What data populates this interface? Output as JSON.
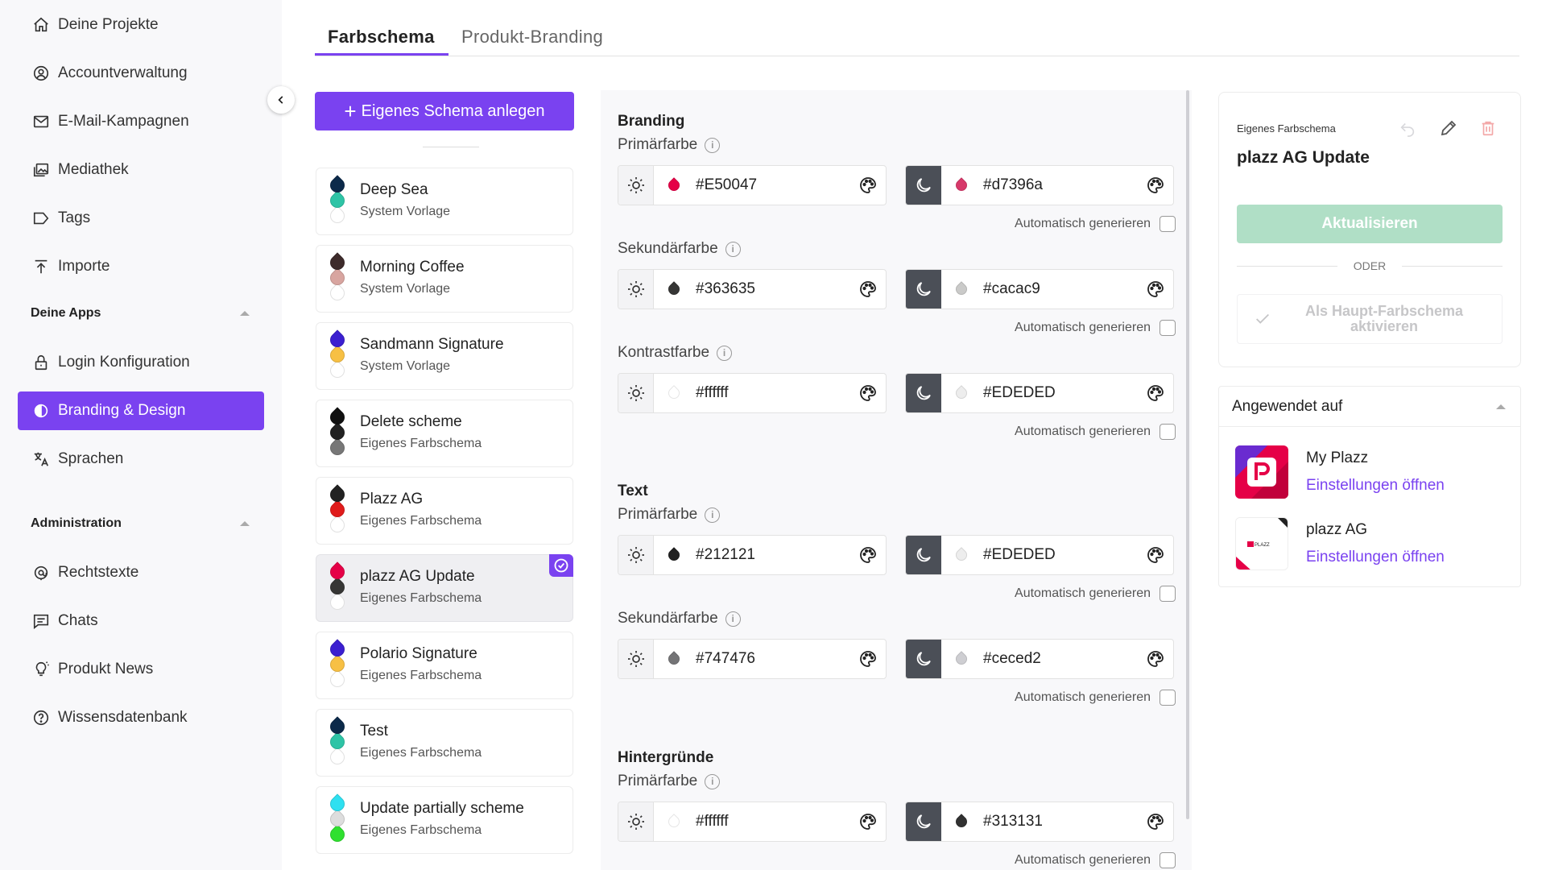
{
  "sidebar": {
    "items": [
      {
        "label": "Deine Projekte",
        "icon": "home-icon"
      },
      {
        "label": "Accountverwaltung",
        "icon": "account-icon"
      },
      {
        "label": "E-Mail-Kampagnen",
        "icon": "mail-icon"
      },
      {
        "label": "Mediathek",
        "icon": "media-icon"
      },
      {
        "label": "Tags",
        "icon": "tag-icon"
      },
      {
        "label": "Importe",
        "icon": "import-icon"
      }
    ],
    "section_apps": "Deine Apps",
    "apps_items": [
      {
        "label": "Login Konfiguration",
        "icon": "lock-icon"
      },
      {
        "label": "Branding & Design",
        "icon": "branding-icon",
        "active": true
      },
      {
        "label": "Sprachen",
        "icon": "translate-icon"
      }
    ],
    "section_admin": "Administration",
    "admin_items": [
      {
        "label": "Rechtstexte",
        "icon": "legal-icon"
      },
      {
        "label": "Chats",
        "icon": "chat-icon"
      },
      {
        "label": "Produkt News",
        "icon": "lightbulb-icon"
      },
      {
        "label": "Wissensdatenbank",
        "icon": "help-icon"
      }
    ]
  },
  "tabs": [
    "Farbschema",
    "Produkt-Branding"
  ],
  "create_button": "Eigenes Schema anlegen",
  "schemes": [
    {
      "name": "Deep Sea",
      "sub": "System Vorlage",
      "colors": [
        "#0c2a4a",
        "#2ec4a6",
        "#ffffff"
      ]
    },
    {
      "name": "Morning Coffee",
      "sub": "System Vorlage",
      "colors": [
        "#3d2b2b",
        "#d8a5a0",
        "#ffffff"
      ]
    },
    {
      "name": "Sandmann Signature",
      "sub": "System Vorlage",
      "colors": [
        "#3b1fd0",
        "#f7c044",
        "#ffffff"
      ]
    },
    {
      "name": "Delete scheme",
      "sub": "Eigenes Farbschema",
      "colors": [
        "#111111",
        "#222222",
        "#777777"
      ]
    },
    {
      "name": "Plazz AG",
      "sub": "Eigenes Farbschema",
      "colors": [
        "#222222",
        "#e01b1b",
        "#ffffff"
      ]
    },
    {
      "name": "plazz AG Update",
      "sub": "Eigenes Farbschema",
      "colors": [
        "#E50047",
        "#363635",
        "#ffffff"
      ],
      "selected": true
    },
    {
      "name": "Polario Signature",
      "sub": "Eigenes Farbschema",
      "colors": [
        "#3b1fd0",
        "#f7c044",
        "#ffffff"
      ]
    },
    {
      "name": "Test",
      "sub": "Eigenes Farbschema",
      "colors": [
        "#0c2a4a",
        "#2ec4a6",
        "#ffffff"
      ]
    },
    {
      "name": "Update partially scheme",
      "sub": "Eigenes Farbschema",
      "colors": [
        "#2ee0f0",
        "#dddddd",
        "#2fe02f"
      ]
    }
  ],
  "editor": {
    "auto_label": "Automatisch generieren",
    "groups": [
      {
        "title": "Branding",
        "fields": [
          {
            "label": "Primärfarbe",
            "light": "#E50047",
            "dark": "#d7396a"
          },
          {
            "label": "Sekundärfarbe",
            "light": "#363635",
            "dark": "#cacac9"
          },
          {
            "label": "Kontrastfarbe",
            "light": "#ffffff",
            "dark": "#EDEDED"
          }
        ]
      },
      {
        "title": "Text",
        "fields": [
          {
            "label": "Primärfarbe",
            "light": "#212121",
            "dark": "#EDEDED"
          },
          {
            "label": "Sekundärfarbe",
            "light": "#747476",
            "dark": "#ceced2"
          }
        ]
      },
      {
        "title": "Hintergründe",
        "fields": [
          {
            "label": "Primärfarbe",
            "light": "#ffffff",
            "dark": "#313131"
          }
        ]
      }
    ]
  },
  "detail": {
    "kicker": "Eigenes Farbschema",
    "title": "plazz AG Update",
    "update_button": "Aktualisieren",
    "or": "ODER",
    "activate_line1": "Als Haupt-Farbschema",
    "activate_line2": "aktivieren"
  },
  "applied": {
    "title": "Angewendet auf",
    "apps": [
      {
        "name": "My Plazz",
        "link": "Einstellungen öffnen"
      },
      {
        "name": "plazz AG",
        "link": "Einstellungen öffnen",
        "logo_text": "PLAZZ"
      }
    ]
  },
  "colors": {
    "accent": "#7a42f0",
    "success_disabled": "#b0dfc6",
    "brand_pink": "#E50047"
  }
}
